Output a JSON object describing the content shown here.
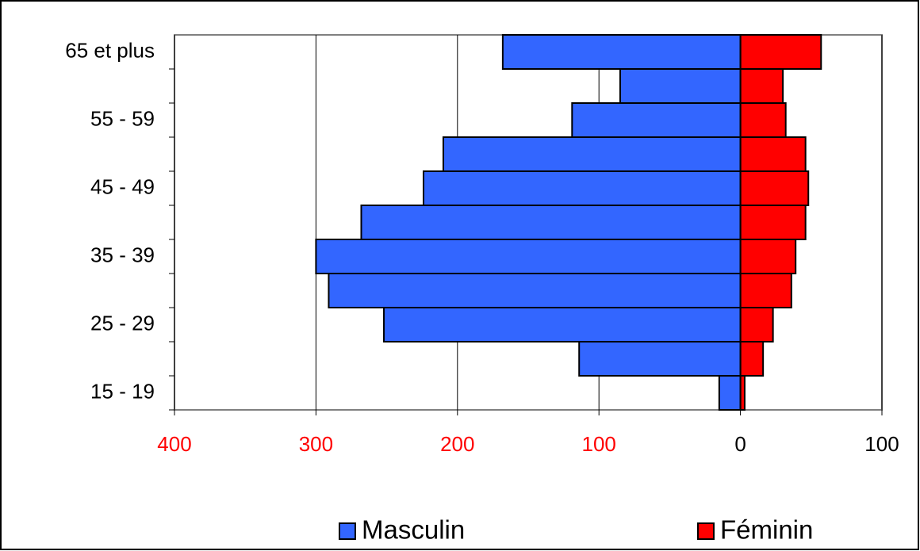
{
  "chart_data": {
    "type": "bar",
    "orientation": "horizontal",
    "stacked": "diverging",
    "categories": [
      "15 - 19",
      null,
      "25 - 29",
      null,
      "35 - 39",
      null,
      "45 - 49",
      null,
      "55 - 59",
      null,
      "65 et plus"
    ],
    "series": [
      {
        "name": "Masculin",
        "color": "#3366ff",
        "values": [
          -15,
          -114,
          -252,
          -291,
          -300,
          -268,
          -224,
          -210,
          -119,
          -85,
          -168
        ]
      },
      {
        "name": "Féminin",
        "color": "#ff0000",
        "values": [
          3,
          16,
          23,
          36,
          39,
          46,
          48,
          46,
          32,
          30,
          57
        ]
      }
    ],
    "xlim": [
      -400,
      100
    ],
    "xticks": [
      {
        "value": -400,
        "label": "400"
      },
      {
        "value": -300,
        "label": "300"
      },
      {
        "value": -200,
        "label": "200"
      },
      {
        "value": -100,
        "label": "100"
      },
      0,
      100
    ],
    "negative_tick_color": "#ff0000",
    "grid": true,
    "legend": "bottom"
  }
}
